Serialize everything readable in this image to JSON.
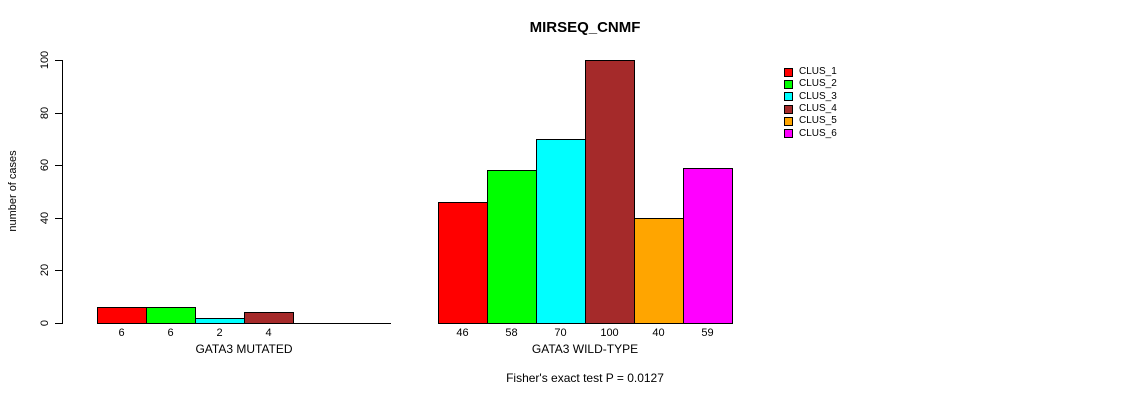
{
  "title": "MIRSEQ_CNMF",
  "footer": "Fisher's exact test P = 0.0127",
  "legend": {
    "items": [
      {
        "label": "CLUS_1",
        "color": "#FF0000"
      },
      {
        "label": "CLUS_2",
        "color": "#00FF00"
      },
      {
        "label": "CLUS_3",
        "color": "#00FFFF"
      },
      {
        "label": "CLUS_4",
        "color": "#A52A2A"
      },
      {
        "label": "CLUS_5",
        "color": "#FFA500"
      },
      {
        "label": "CLUS_6",
        "color": "#FF00FF"
      }
    ]
  },
  "chart_data": {
    "type": "bar",
    "title": "MIRSEQ_CNMF",
    "xlabel": "",
    "ylabel": "number of cases",
    "ylim": [
      0,
      100
    ],
    "yticks": [
      0,
      20,
      40,
      60,
      80,
      100
    ],
    "grid": false,
    "legend_position": "right",
    "series_names": [
      "CLUS_1",
      "CLUS_2",
      "CLUS_3",
      "CLUS_4",
      "CLUS_5",
      "CLUS_6"
    ],
    "series_colors": [
      "#FF0000",
      "#00FF00",
      "#00FFFF",
      "#A52A2A",
      "#FFA500",
      "#FF00FF"
    ],
    "groups": [
      {
        "label": "GATA3 MUTATED",
        "values": [
          6,
          6,
          2,
          4,
          0,
          0
        ],
        "bar_labels": [
          "6",
          "6",
          "2",
          "4",
          "",
          ""
        ]
      },
      {
        "label": "GATA3 WILD-TYPE",
        "values": [
          46,
          58,
          70,
          100,
          40,
          59
        ],
        "bar_labels": [
          "46",
          "58",
          "70",
          "100",
          "40",
          "59"
        ]
      }
    ],
    "annotation": "Fisher's exact test P = 0.0127"
  }
}
